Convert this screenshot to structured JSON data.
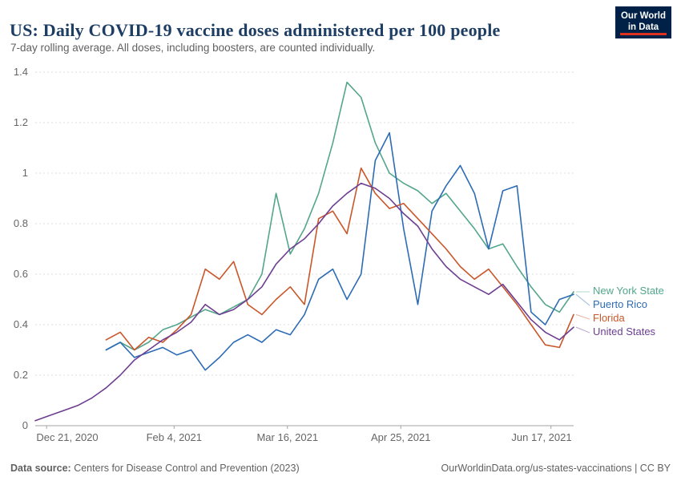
{
  "logo": {
    "line1": "Our World",
    "line2": "in Data",
    "bg": "#002147",
    "accent": "#e0301e"
  },
  "footer": {
    "source_label": "Data source:",
    "source_text": " Centers for Disease Control and Prevention (2023)",
    "right_text": "OurWorldinData.org/us-states-vaccinations | CC BY"
  },
  "chart_data": {
    "type": "line",
    "title": "US: Daily COVID-19 vaccine doses administered per 100 people",
    "subtitle": "7-day rolling average. All doses, including boosters, are counted individually.",
    "xlabel": "",
    "ylabel": "",
    "ylim": [
      0,
      1.4
    ],
    "yticks": [
      0,
      0.2,
      0.4,
      0.6,
      0.8,
      1,
      1.2,
      1.4
    ],
    "xticks": [
      {
        "label": "Dec 21, 2020",
        "date": "2020-12-21"
      },
      {
        "label": "Feb 4, 2021",
        "date": "2021-02-04"
      },
      {
        "label": "Mar 16, 2021",
        "date": "2021-03-16"
      },
      {
        "label": "Apr 25, 2021",
        "date": "2021-04-25"
      },
      {
        "label": "Jun 17, 2021",
        "date": "2021-06-17"
      }
    ],
    "grid": "horizontal-dashed",
    "legend_position": "right",
    "x": [
      "2020-12-17",
      "2020-12-22",
      "2020-12-27",
      "2021-01-01",
      "2021-01-06",
      "2021-01-11",
      "2021-01-16",
      "2021-01-21",
      "2021-01-26",
      "2021-01-31",
      "2021-02-05",
      "2021-02-10",
      "2021-02-15",
      "2021-02-20",
      "2021-02-25",
      "2021-03-02",
      "2021-03-07",
      "2021-03-12",
      "2021-03-17",
      "2021-03-22",
      "2021-03-27",
      "2021-04-01",
      "2021-04-06",
      "2021-04-11",
      "2021-04-16",
      "2021-04-21",
      "2021-04-26",
      "2021-05-01",
      "2021-05-06",
      "2021-05-11",
      "2021-05-16",
      "2021-05-21",
      "2021-05-26",
      "2021-05-31",
      "2021-06-05",
      "2021-06-10",
      "2021-06-15",
      "2021-06-20",
      "2021-06-25"
    ],
    "series": [
      {
        "name": "New York State",
        "color": "#53a68c",
        "values": [
          null,
          null,
          null,
          null,
          null,
          0.3,
          0.33,
          0.3,
          0.33,
          0.38,
          0.4,
          0.43,
          0.46,
          0.44,
          0.47,
          0.5,
          0.6,
          0.92,
          0.68,
          0.78,
          0.92,
          1.12,
          1.36,
          1.3,
          1.12,
          1.0,
          0.96,
          0.93,
          0.88,
          0.92,
          0.85,
          0.78,
          0.7,
          0.72,
          0.63,
          0.55,
          0.48,
          0.45,
          0.53
        ]
      },
      {
        "name": "Puerto Rico",
        "color": "#2d6cb5",
        "values": [
          null,
          null,
          null,
          null,
          null,
          0.3,
          0.33,
          0.27,
          0.29,
          0.31,
          0.28,
          0.3,
          0.22,
          0.27,
          0.33,
          0.36,
          0.33,
          0.38,
          0.36,
          0.44,
          0.58,
          0.62,
          0.5,
          0.6,
          1.05,
          1.16,
          0.78,
          0.48,
          0.85,
          0.95,
          1.03,
          0.92,
          0.7,
          0.93,
          0.95,
          0.45,
          0.4,
          0.5,
          0.52
        ]
      },
      {
        "name": "Florida",
        "color": "#c9572a",
        "values": [
          null,
          null,
          null,
          null,
          null,
          0.34,
          0.37,
          0.3,
          0.35,
          0.33,
          0.38,
          0.44,
          0.62,
          0.58,
          0.65,
          0.48,
          0.44,
          0.5,
          0.55,
          0.48,
          0.82,
          0.85,
          0.76,
          1.02,
          0.92,
          0.86,
          0.88,
          0.82,
          0.76,
          0.7,
          0.63,
          0.58,
          0.62,
          0.55,
          0.48,
          0.4,
          0.32,
          0.31,
          0.44
        ]
      },
      {
        "name": "United States",
        "color": "#6d3e91",
        "values": [
          0.02,
          0.04,
          0.06,
          0.08,
          0.11,
          0.15,
          0.2,
          0.26,
          0.3,
          0.34,
          0.37,
          0.41,
          0.48,
          0.44,
          0.46,
          0.5,
          0.55,
          0.64,
          0.7,
          0.74,
          0.8,
          0.87,
          0.92,
          0.96,
          0.94,
          0.9,
          0.84,
          0.79,
          0.7,
          0.63,
          0.58,
          0.55,
          0.52,
          0.56,
          0.49,
          0.42,
          0.37,
          0.34,
          0.39
        ]
      }
    ]
  }
}
